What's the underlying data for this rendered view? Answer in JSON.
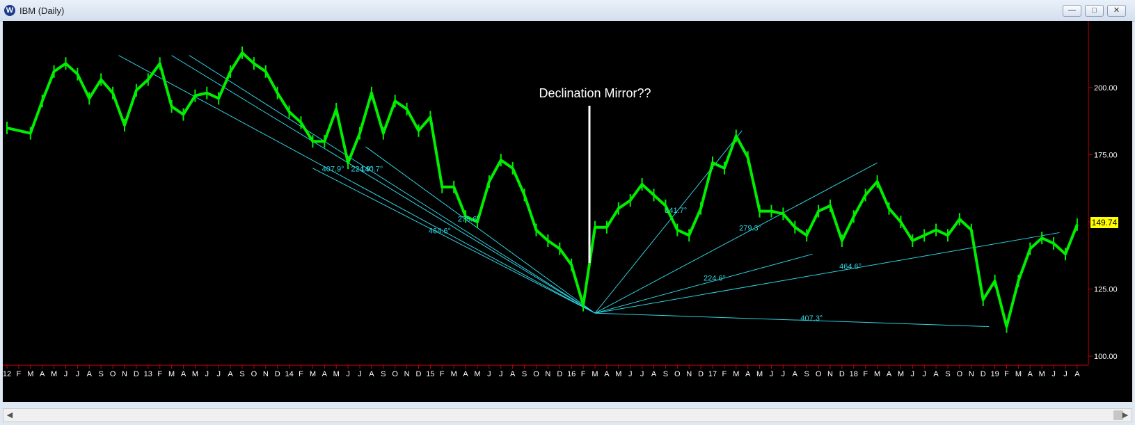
{
  "window": {
    "title": "IBM (Daily)",
    "app_icon": "W"
  },
  "chart_data": {
    "type": "line",
    "title": "",
    "annotation": "Declination Mirror??",
    "last_price": "149.74",
    "y_ticks": [
      "100.00",
      "125.00",
      "150.00",
      "175.00",
      "200.00"
    ],
    "y_tick_values": [
      100,
      125,
      150,
      175,
      200
    ],
    "ylim": [
      97,
      230
    ],
    "x_ticks": [
      "12",
      "F",
      "M",
      "A",
      "M",
      "J",
      "J",
      "A",
      "S",
      "O",
      "N",
      "D",
      "13",
      "F",
      "M",
      "A",
      "M",
      "J",
      "J",
      "A",
      "S",
      "O",
      "N",
      "D",
      "14",
      "F",
      "M",
      "A",
      "M",
      "J",
      "J",
      "A",
      "S",
      "O",
      "N",
      "D",
      "15",
      "F",
      "M",
      "A",
      "M",
      "J",
      "J",
      "A",
      "S",
      "O",
      "N",
      "D",
      "16",
      "F",
      "M",
      "A",
      "M",
      "J",
      "J",
      "A",
      "S",
      "O",
      "N",
      "D",
      "17",
      "F",
      "M",
      "A",
      "M",
      "J",
      "J",
      "A",
      "S",
      "O",
      "N",
      "D",
      "18",
      "F",
      "M",
      "A",
      "M",
      "J",
      "J",
      "A",
      "S",
      "O",
      "N",
      "D",
      "19",
      "F",
      "M",
      "A",
      "M",
      "J",
      "J",
      "A"
    ],
    "series": [
      {
        "color": "#00ee00",
        "x": [
          0,
          2,
          3,
          4,
          5,
          6,
          7,
          8,
          9,
          10,
          11,
          12,
          13,
          14,
          15,
          16,
          17,
          18,
          19,
          20,
          21,
          22,
          23,
          24,
          25,
          26,
          27,
          28,
          29,
          30,
          31,
          32,
          33,
          34,
          35,
          36,
          37,
          38,
          39,
          40,
          41,
          42,
          43,
          44,
          45,
          46,
          47,
          48,
          49,
          50,
          51,
          52,
          53,
          54,
          55,
          56,
          57,
          58,
          59,
          60,
          61,
          62,
          63,
          64,
          65,
          66,
          67,
          68,
          69,
          70,
          71,
          72,
          73,
          74,
          75,
          76,
          77,
          78,
          79,
          80,
          81,
          82,
          83,
          84,
          85,
          86,
          87,
          88,
          89,
          90,
          91
        ],
        "y": [
          185,
          183,
          195,
          206,
          209,
          205,
          196,
          203,
          198,
          186,
          199,
          203,
          209,
          193,
          190,
          197,
          198,
          196,
          206,
          213,
          209,
          206,
          198,
          191,
          187,
          180,
          180,
          192,
          172,
          183,
          198,
          183,
          195,
          192,
          184,
          189,
          163,
          163,
          152,
          150,
          165,
          173,
          170,
          160,
          147,
          143,
          140,
          134,
          119,
          148,
          148,
          155,
          158,
          164,
          160,
          156,
          147,
          145,
          155,
          172,
          170,
          182,
          174,
          154,
          154,
          153,
          148,
          145,
          154,
          156,
          143,
          152,
          160,
          165,
          155,
          150,
          143,
          145,
          147,
          145,
          151,
          147,
          121,
          128,
          111,
          128,
          140,
          144,
          142,
          138,
          149
        ]
      }
    ],
    "angle_lines": [
      {
        "from": [
          9.5,
          212
        ],
        "label": "407.9°"
      },
      {
        "from": [
          14,
          212
        ],
        "label": "224.9°"
      },
      {
        "from": [
          15.5,
          212
        ],
        "label": "140.7°"
      },
      {
        "from": [
          30.5,
          178
        ],
        "label": "278.6°"
      },
      {
        "from": [
          26,
          170
        ],
        "label": "464.6°"
      },
      {
        "to": [
          62.5,
          184
        ],
        "label": "141.7°"
      },
      {
        "to": [
          74,
          172
        ],
        "label": "279.3°"
      },
      {
        "to": [
          68.5,
          138
        ],
        "label": "224.6°"
      },
      {
        "to": [
          89.5,
          146
        ],
        "label": "464.6°"
      },
      {
        "to": [
          83.5,
          111
        ],
        "label": "407.3°"
      }
    ],
    "pivot": [
      50,
      116
    ]
  }
}
